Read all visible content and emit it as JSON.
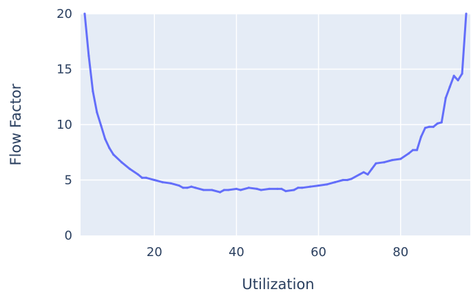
{
  "chart_data": {
    "type": "line",
    "xlabel": "Utilization",
    "ylabel": "Flow Factor",
    "xlim": [
      2,
      97
    ],
    "ylim": [
      0,
      20
    ],
    "x_ticks": [
      20,
      40,
      60,
      80
    ],
    "y_ticks": [
      0,
      5,
      10,
      15,
      20
    ],
    "grid": true,
    "colors": {
      "line": "#636efa",
      "plot_bg": "#e5ecf6",
      "grid": "#ffffff",
      "text": "#2a3f5f"
    },
    "series": [
      {
        "x": [
          3,
          4,
          5,
          6,
          7,
          8,
          9,
          10,
          12,
          14,
          16,
          17,
          18,
          20,
          22,
          24,
          26,
          27,
          28,
          29,
          30,
          32,
          34,
          36,
          37,
          38,
          40,
          41,
          43,
          45,
          46,
          48,
          50,
          51,
          52,
          54,
          55,
          56,
          58,
          60,
          62,
          64,
          66,
          67,
          68,
          70,
          71,
          72,
          73,
          74,
          76,
          78,
          80,
          82,
          83,
          84,
          85,
          86,
          87,
          88,
          89,
          90,
          91,
          92,
          93,
          94,
          95,
          96
        ],
        "y": [
          20,
          16.2,
          13,
          11.1,
          9.9,
          8.7,
          7.9,
          7.3,
          6.6,
          6,
          5.5,
          5.2,
          5.2,
          5,
          4.8,
          4.7,
          4.5,
          4.3,
          4.3,
          4.4,
          4.3,
          4.1,
          4.1,
          3.9,
          4.1,
          4.1,
          4.2,
          4.1,
          4.3,
          4.2,
          4.1,
          4.2,
          4.2,
          4.2,
          4,
          4.1,
          4.3,
          4.3,
          4.4,
          4.5,
          4.6,
          4.8,
          5,
          5,
          5.1,
          5.5,
          5.7,
          5.5,
          6,
          6.5,
          6.6,
          6.8,
          6.9,
          7.4,
          7.7,
          7.7,
          8.9,
          9.7,
          9.8,
          9.8,
          10.1,
          10.2,
          12.4,
          13.4,
          14.4,
          14,
          14.6,
          20
        ]
      }
    ]
  }
}
